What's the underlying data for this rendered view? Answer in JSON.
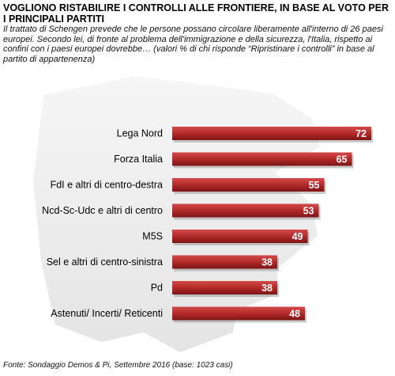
{
  "title": "VOGLIONO RISTABILIRE I CONTROLLI ALLE FRONTIERE, IN BASE AL VOTO PER I PRINCIPALI PARTITI",
  "subtitle": "Il trattato di Schengen prevede che le persone possano circolare liberamente all'interno di 26 paesi europei. Secondo lei, di fronte al problema dell'immigrazione e della sicurezza, l'Italia, rispetto ai confini con i paesi europei dovrebbe… (valori % di chi risponde “Ripristinare i controlli” in base al partito di appartenenza)",
  "source": "Fonte: Sondaggio Demos & Pi, Settembre 2016 (base: 1023 casi)",
  "chart_data": {
    "type": "bar",
    "orientation": "horizontal",
    "categories": [
      "Lega Nord",
      "Forza Italia",
      "FdI e altri di centro-destra",
      "Ncd-Sc-Udc e altri di centro",
      "M5S",
      "Sel e altri di centro-sinistra",
      "Pd",
      "Astenuti/ Incerti/ Reticenti"
    ],
    "values": [
      72,
      65,
      55,
      53,
      49,
      38,
      38,
      48
    ],
    "xlim": [
      0,
      80
    ],
    "grid": false,
    "bar_color": "#b22a2a",
    "label_color": "#ffffff"
  }
}
